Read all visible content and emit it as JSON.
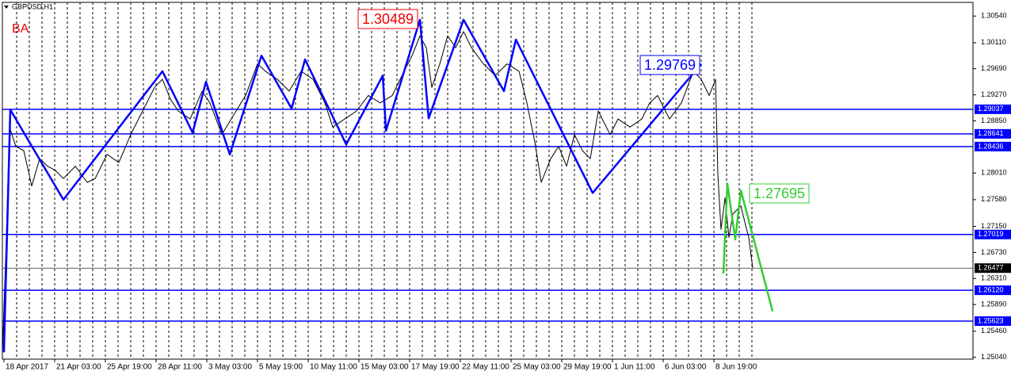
{
  "header": "GBPUSD,H1",
  "annotation": "BA",
  "chart_data": {
    "type": "line",
    "categories": [
      "18 Apr 2017",
      null,
      null,
      null,
      "21 Apr 03:00",
      null,
      null,
      null,
      "25 Apr 19:00",
      null,
      null,
      null,
      "28 Apr 11:00",
      null,
      null,
      null,
      "3 May 03:00",
      null,
      null,
      null,
      "5 May 19:00",
      null,
      null,
      null,
      "10 May 11:00",
      null,
      null,
      null,
      "15 May 03:00",
      null,
      null,
      null,
      "17 May 19:00",
      null,
      null,
      null,
      "22 May 11:00",
      null,
      null,
      null,
      "25 May 03:00",
      null,
      null,
      null,
      "29 May 19:00",
      null,
      null,
      null,
      "1 Jun 11:00",
      null,
      null,
      null,
      "6 Jun 03:00",
      null,
      null,
      null,
      "8 Jun 19:00",
      null,
      null,
      null
    ],
    "xlim": [
      -0.125,
      76.4375
    ],
    "ylim": [
      1.2501,
      1.3076
    ],
    "yticks": [
      {
        "value": 1.3054,
        "label": "1.30540"
      },
      {
        "value": 1.3011,
        "label": "1.30110"
      },
      {
        "value": 1.2969,
        "label": "1.29690"
      },
      {
        "value": 1.2927,
        "label": "1.29270"
      },
      {
        "value": 1.2885,
        "label": "1.28850"
      },
      {
        "value": 1.2801,
        "label": "1.28010"
      },
      {
        "value": 1.2758,
        "label": "1.27580"
      },
      {
        "value": 1.2715,
        "label": "1.27150"
      },
      {
        "value": 1.2673,
        "label": "1.26730"
      },
      {
        "value": 1.2631,
        "label": "1.26310"
      },
      {
        "value": 1.2589,
        "label": "1.25890"
      },
      {
        "value": 1.2546,
        "label": "1.25460"
      },
      {
        "value": 1.2504,
        "label": "1.25040"
      }
    ],
    "grid": true,
    "series": [
      {
        "color": "#000000",
        "x": [
          -0.12,
          0.19,
          0.44,
          0.94,
          1.56,
          2.19,
          2.81,
          3.44,
          4.06,
          4.69,
          5.63,
          6.56,
          7.19,
          8.13,
          9.06,
          10,
          10.94,
          11.88,
          12.5,
          13.13,
          13.75,
          14.69,
          15.63,
          16.25,
          17.19,
          18.13,
          19.06,
          20,
          20.63,
          21.56,
          22.5,
          23.44,
          24.38,
          25.31,
          25.94,
          26.88,
          27.81,
          28.75,
          29.69,
          30.63,
          31.56,
          32.19,
          32.81,
          33.31,
          33.75,
          34.38,
          35,
          35.63,
          36.25,
          36.88,
          37.81,
          38.75,
          39.69,
          40.63,
          41.25,
          41.88,
          42.38,
          43.13,
          43.75,
          44.38,
          45,
          45.63,
          46.25,
          46.88,
          47.81,
          48.44,
          49.38,
          50.31,
          50.94,
          51.56,
          52.5,
          53.44,
          54.38,
          55,
          55.63,
          56.13,
          56.31,
          56.56,
          56.88,
          57.19,
          57.5,
          58.13,
          58.44,
          58.75,
          59.06
        ],
        "values": [
          1.2512,
          1.2697,
          1.2875,
          1.2844,
          1.2837,
          1.278,
          1.2824,
          1.2812,
          1.2805,
          1.2792,
          1.2812,
          1.2786,
          1.2792,
          1.2831,
          1.2818,
          1.2863,
          1.2901,
          1.2939,
          1.2952,
          1.292,
          1.2901,
          1.2888,
          1.2933,
          1.2914,
          1.2863,
          1.2895,
          1.2926,
          1.2977,
          1.2965,
          1.2952,
          1.2933,
          1.2965,
          1.2952,
          1.2914,
          1.2875,
          1.2888,
          1.2901,
          1.2926,
          1.2914,
          1.2926,
          1.2965,
          1.299,
          1.3022,
          1.3003,
          1.2939,
          1.2977,
          1.3022,
          1.3003,
          1.3029,
          1.3003,
          1.2977,
          1.2958,
          1.2977,
          1.2965,
          1.2914,
          1.285,
          1.2786,
          1.2824,
          1.2844,
          1.2812,
          1.2863,
          1.2837,
          1.2824,
          1.2901,
          1.2863,
          1.2888,
          1.2875,
          1.2888,
          1.2914,
          1.2926,
          1.2888,
          1.2914,
          1.2965,
          1.2952,
          1.2926,
          1.2952,
          1.2799,
          1.271,
          1.2761,
          1.2697,
          1.2735,
          1.2748,
          1.2722,
          1.2697,
          1.2648
        ]
      },
      {
        "color": "#0000ff",
        "x": [
          0,
          0.5,
          4.69,
          12.5,
          14.88,
          15.94,
          17.81,
          20.31,
          22.69,
          23.75,
          27,
          29.88,
          30.13,
          32.81,
          33.5,
          36.25,
          39.44,
          40.38,
          46.44,
          55
        ],
        "values": [
          1.2512,
          1.2903,
          1.2758,
          1.2965,
          1.2866,
          1.2948,
          1.2831,
          1.299,
          1.2905,
          1.2984,
          1.2847,
          1.2958,
          1.2869,
          1.3048,
          1.2889,
          1.3048,
          1.2933,
          1.3016,
          1.2769,
          1.2977
        ]
      },
      {
        "color": "#33cc33",
        "x": [
          56.75,
          57.06,
          57.69,
          58.13,
          60.63
        ],
        "values": [
          1.2639,
          1.2784,
          1.2694,
          1.2773,
          1.2578
        ]
      }
    ],
    "levels": [
      {
        "value": 1.29037,
        "label": "1.29037"
      },
      {
        "value": 1.28641,
        "label": "1.28641"
      },
      {
        "value": 1.28436,
        "label": "1.28436"
      },
      {
        "value": 1.27019,
        "label": "1.27019"
      },
      {
        "value": 1.2612,
        "label": "1.26120"
      },
      {
        "value": 1.25623,
        "label": "1.25623"
      }
    ],
    "level_color": "#0000ff",
    "current_price": {
      "value": 1.26477,
      "label": "1.26477"
    },
    "annotations": [
      {
        "text": "1.30489",
        "color": "#ee0000"
      },
      {
        "text": "1.29769",
        "color": "#0000ff"
      },
      {
        "text": "1.27695",
        "color": "#33cc33"
      }
    ]
  }
}
